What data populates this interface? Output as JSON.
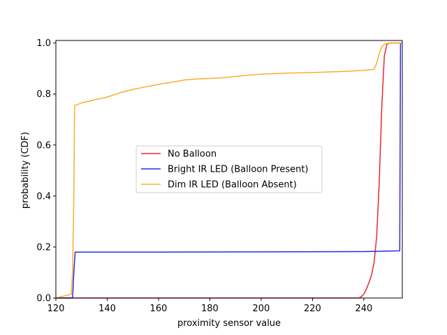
{
  "chart_data": {
    "type": "line",
    "xlabel": "proximity sensor value",
    "ylabel": "probability (CDF)",
    "xlim": [
      120,
      255
    ],
    "ylim": [
      0,
      1.01
    ],
    "xticks": [
      120,
      140,
      160,
      180,
      200,
      220,
      240
    ],
    "xtick_labels": [
      "120",
      "140",
      "160",
      "180",
      "200",
      "220",
      "240"
    ],
    "yticks": [
      0,
      0.2,
      0.4,
      0.6,
      0.8,
      1.0
    ],
    "ytick_labels": [
      "0.0",
      "0.2",
      "0.4",
      "0.6",
      "0.8",
      "1.0"
    ],
    "grid": false,
    "legend_position": "center",
    "series": [
      {
        "name": "No Balloon",
        "color": "#e8292b",
        "x": [
          120,
          238,
          239,
          240,
          241,
          242,
          243,
          244,
          245,
          246,
          247,
          248,
          249,
          250,
          255
        ],
        "y": [
          0.0,
          0.0,
          0.005,
          0.015,
          0.035,
          0.06,
          0.09,
          0.14,
          0.24,
          0.45,
          0.75,
          0.95,
          0.995,
          1.0,
          1.0
        ]
      },
      {
        "name": "Bright IR LED (Balloon Present)",
        "color": "#2a2ae0",
        "x": [
          120,
          126.5,
          127,
          127.5,
          160,
          200,
          240,
          254,
          254.3,
          255
        ],
        "y": [
          0.0,
          0.0,
          0.1,
          0.18,
          0.18,
          0.181,
          0.182,
          0.185,
          1.0,
          1.0
        ]
      },
      {
        "name": "Dim IR LED (Balloon Absent)",
        "color": "#fbad2a",
        "x": [
          120,
          126,
          126.5,
          127,
          127.3,
          127.6,
          128,
          130,
          135,
          140,
          145,
          150,
          155,
          160,
          165,
          170,
          175,
          180,
          185,
          190,
          195,
          200,
          205,
          210,
          215,
          220,
          225,
          230,
          235,
          240,
          244,
          245,
          246,
          247,
          248,
          249,
          250,
          255
        ],
        "y": [
          0.0,
          0.015,
          0.1,
          0.4,
          0.755,
          0.756,
          0.757,
          0.765,
          0.777,
          0.788,
          0.805,
          0.818,
          0.828,
          0.838,
          0.846,
          0.855,
          0.859,
          0.861,
          0.864,
          0.869,
          0.874,
          0.878,
          0.88,
          0.882,
          0.883,
          0.884,
          0.886,
          0.888,
          0.89,
          0.893,
          0.897,
          0.92,
          0.96,
          0.985,
          0.995,
          0.998,
          1.0,
          1.0
        ]
      }
    ]
  }
}
